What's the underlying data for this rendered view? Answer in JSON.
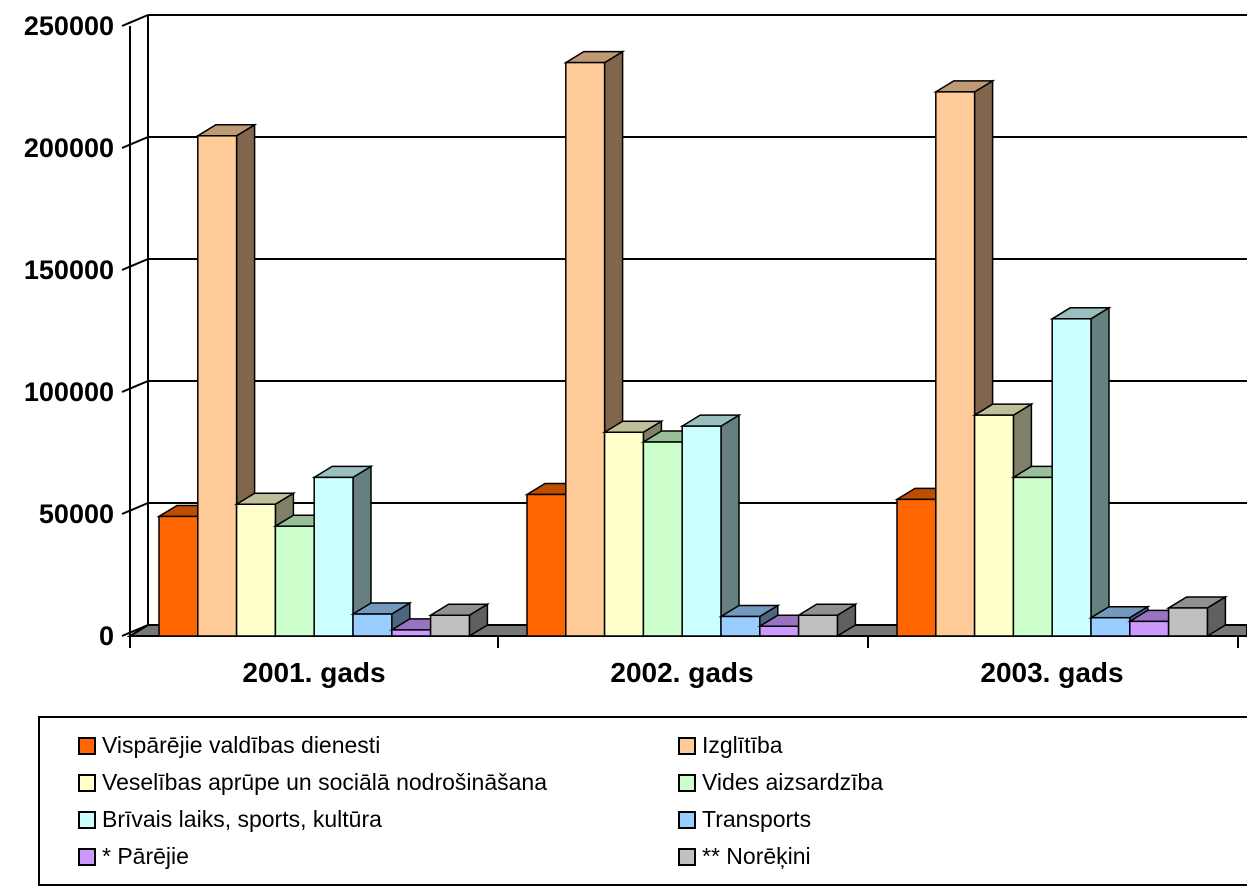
{
  "chart_data": {
    "type": "bar",
    "title": "",
    "xlabel": "",
    "ylabel": "",
    "ylim": [
      0,
      250000
    ],
    "yticks": [
      "0",
      "50000",
      "100000",
      "150000",
      "200000",
      "250000"
    ],
    "categories": [
      "2001. gads",
      "2002. gads",
      "2003. gads"
    ],
    "grid": true,
    "three_d": true,
    "legend_position": "bottom",
    "series": [
      {
        "name": "Vispārējie valdības dienesti",
        "color": "#ff6600",
        "values": [
          49000,
          58000,
          56000
        ]
      },
      {
        "name": "Izglītība",
        "color": "#ffcc99",
        "values": [
          205000,
          235000,
          223000
        ]
      },
      {
        "name": "Veselības aprūpe un sociālā nodrošināšana",
        "color": "#ffffcc",
        "values": [
          54000,
          83500,
          90500
        ]
      },
      {
        "name": "Vides aizsardzība",
        "color": "#ccffcc",
        "values": [
          45000,
          79500,
          65000
        ]
      },
      {
        "name": "Brīvais laiks, sports, kultūra",
        "color": "#ccffff",
        "values": [
          65000,
          86000,
          130000
        ]
      },
      {
        "name": "Transports",
        "color": "#99ccff",
        "values": [
          9000,
          8000,
          7500
        ]
      },
      {
        "name": "* Pārējie",
        "color": "#cc99ff",
        "values": [
          2500,
          4000,
          6000
        ]
      },
      {
        "name": "** Norēķini",
        "color": "#c0c0c0",
        "values": [
          8500,
          8500,
          11500
        ]
      }
    ]
  }
}
